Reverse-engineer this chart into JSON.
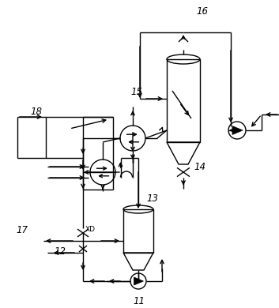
{
  "fig_width": 3.53,
  "fig_height": 3.9,
  "dpi": 100,
  "bg_color": "#ffffff",
  "line_color": "#000000",
  "lw": 1.0
}
